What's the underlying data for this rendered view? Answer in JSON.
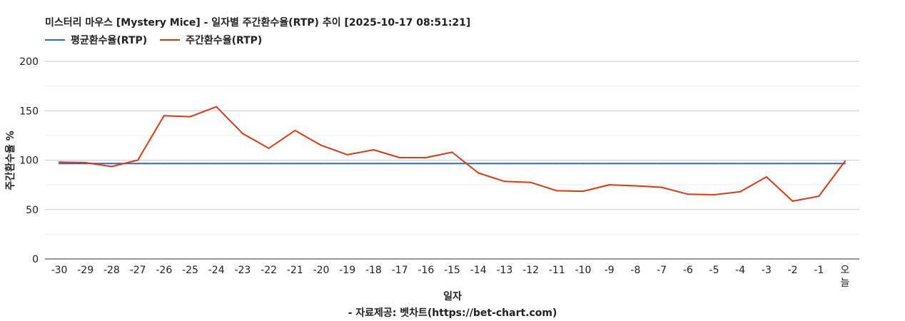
{
  "chart_data": {
    "type": "line",
    "title": "미스터리 마우스 [Mystery Mice] - 일자별 주간환수율(RTP) 추이 [2025-10-17 08:51:21]",
    "xlabel": "일자",
    "ylabel": "주간환수율 %",
    "source_note": "- 자료제공: 벳차트(https://bet-chart.com)",
    "ylim": [
      0,
      200
    ],
    "yticks": [
      0,
      50,
      100,
      150,
      200
    ],
    "grid": true,
    "legend_position": "top-left",
    "categories": [
      "-30",
      "-29",
      "-28",
      "-27",
      "-26",
      "-25",
      "-24",
      "-23",
      "-22",
      "-21",
      "-20",
      "-19",
      "-18",
      "-17",
      "-16",
      "-15",
      "-14",
      "-13",
      "-12",
      "-11",
      "-10",
      "-9",
      "-8",
      "-7",
      "-6",
      "-5",
      "-4",
      "-3",
      "-2",
      "-1",
      "오늘"
    ],
    "series": [
      {
        "name": "평균환수율(RTP)",
        "color": "#3366cc",
        "values": [
          96.5,
          96.5,
          96.5,
          96.5,
          96.5,
          96.5,
          96.5,
          96.5,
          96.5,
          96.5,
          96.5,
          96.5,
          96.5,
          96.5,
          96.5,
          96.5,
          96.5,
          96.5,
          96.5,
          96.5,
          96.5,
          96.5,
          96.5,
          96.5,
          96.5,
          96.5,
          96.5,
          96.5,
          96.5,
          96.5,
          96.5
        ]
      },
      {
        "name": "주간환수율(RTP)",
        "color": "#dc3912",
        "values": [
          98,
          97.5,
          93.5,
          100,
          145,
          144,
          154,
          127,
          112,
          130,
          115,
          105.5,
          110.5,
          102.5,
          102.5,
          108,
          87,
          78.5,
          77.5,
          69,
          68.5,
          75,
          74,
          72.5,
          65.5,
          65,
          68,
          83,
          58.5,
          63.5,
          99
        ]
      }
    ]
  }
}
